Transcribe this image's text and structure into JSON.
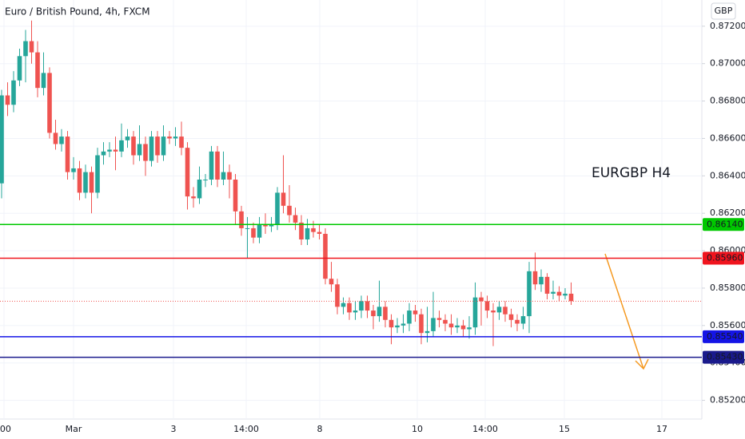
{
  "chart_data": {
    "type": "candlestick",
    "title": "Euro / British Pound, 4h, FXCM",
    "annotation": "EURGBP H4",
    "y_axis_label": "GBP",
    "up_color": "#26a69a",
    "down_color": "#ef5350",
    "grid": true,
    "ylim": [
      0.851,
      0.8734
    ],
    "yticks": [
      {
        "value": 0.852,
        "label": "0.85200"
      },
      {
        "value": 0.854,
        "label": "0.85400"
      },
      {
        "value": 0.856,
        "label": "0.85600"
      },
      {
        "value": 0.858,
        "label": "0.85800"
      },
      {
        "value": 0.86,
        "label": "0.86000"
      },
      {
        "value": 0.862,
        "label": "0.86200"
      },
      {
        "value": 0.864,
        "label": "0.86400"
      },
      {
        "value": 0.866,
        "label": "0.86600"
      },
      {
        "value": 0.868,
        "label": "0.86800"
      },
      {
        "value": 0.87,
        "label": "0.87000"
      },
      {
        "value": 0.872,
        "label": "0.87200"
      }
    ],
    "x_labels": [
      ":00",
      "Mar",
      "3",
      "14:00",
      "8",
      "10",
      "14:00",
      "15",
      "17"
    ],
    "levels": [
      {
        "value": 0.8614,
        "label": "0.86140",
        "color": "#00c800"
      },
      {
        "value": 0.8596,
        "label": "0.85960",
        "color": "#f0141e"
      },
      {
        "value": 0.8554,
        "label": "0.85540",
        "color": "#1414e6"
      },
      {
        "value": 0.8543,
        "label": "0.85430",
        "color": "#1a1a8c"
      }
    ],
    "last_price": 0.8573,
    "ohlc": [
      [
        0.8636,
        0.8686,
        0.8628,
        0.8683
      ],
      [
        0.8683,
        0.869,
        0.8672,
        0.8678
      ],
      [
        0.8678,
        0.8696,
        0.8674,
        0.8691
      ],
      [
        0.8691,
        0.8708,
        0.8688,
        0.8704
      ],
      [
        0.8704,
        0.8718,
        0.869,
        0.8712
      ],
      [
        0.8712,
        0.8723,
        0.87,
        0.8706
      ],
      [
        0.8706,
        0.8712,
        0.8682,
        0.8687
      ],
      [
        0.8687,
        0.8706,
        0.8683,
        0.8695
      ],
      [
        0.8695,
        0.8698,
        0.866,
        0.8663
      ],
      [
        0.8663,
        0.867,
        0.8654,
        0.8657
      ],
      [
        0.8657,
        0.8665,
        0.8653,
        0.8661
      ],
      [
        0.8661,
        0.8664,
        0.8638,
        0.8642
      ],
      [
        0.8642,
        0.865,
        0.8638,
        0.8644
      ],
      [
        0.8644,
        0.8648,
        0.8627,
        0.8631
      ],
      [
        0.8631,
        0.8646,
        0.8628,
        0.8642
      ],
      [
        0.8642,
        0.8645,
        0.862,
        0.8631
      ],
      [
        0.8631,
        0.8655,
        0.8628,
        0.8651
      ],
      [
        0.8651,
        0.8658,
        0.8646,
        0.8653
      ],
      [
        0.8653,
        0.8658,
        0.865,
        0.8654
      ],
      [
        0.8654,
        0.8661,
        0.8643,
        0.8653
      ],
      [
        0.8653,
        0.8668,
        0.865,
        0.8659
      ],
      [
        0.8659,
        0.8665,
        0.8655,
        0.8661
      ],
      [
        0.8661,
        0.8664,
        0.8646,
        0.8651
      ],
      [
        0.8651,
        0.8667,
        0.8648,
        0.8657
      ],
      [
        0.8657,
        0.8661,
        0.864,
        0.8648
      ],
      [
        0.8648,
        0.8664,
        0.8645,
        0.8661
      ],
      [
        0.8661,
        0.8664,
        0.8647,
        0.8651
      ],
      [
        0.8651,
        0.8667,
        0.8648,
        0.8661
      ],
      [
        0.8661,
        0.8664,
        0.8657,
        0.866
      ],
      [
        0.866,
        0.8666,
        0.8656,
        0.8661
      ],
      [
        0.8661,
        0.8669,
        0.8651,
        0.8655
      ],
      [
        0.8655,
        0.8658,
        0.8622,
        0.8629
      ],
      [
        0.8629,
        0.8634,
        0.8623,
        0.8628
      ],
      [
        0.8628,
        0.8645,
        0.8625,
        0.8638
      ],
      [
        0.8638,
        0.8641,
        0.8634,
        0.8638
      ],
      [
        0.8638,
        0.8656,
        0.8635,
        0.8653
      ],
      [
        0.8653,
        0.8656,
        0.8634,
        0.8638
      ],
      [
        0.8638,
        0.8653,
        0.8635,
        0.8642
      ],
      [
        0.8642,
        0.8646,
        0.8628,
        0.8638
      ],
      [
        0.8638,
        0.8641,
        0.8614,
        0.8621
      ],
      [
        0.8621,
        0.8624,
        0.8608,
        0.8612
      ],
      [
        0.8612,
        0.8618,
        0.8596,
        0.8612
      ],
      [
        0.8612,
        0.8615,
        0.8604,
        0.8607
      ],
      [
        0.8607,
        0.8618,
        0.8604,
        0.8614
      ],
      [
        0.8614,
        0.862,
        0.8609,
        0.8613
      ],
      [
        0.8613,
        0.8618,
        0.861,
        0.8614
      ],
      [
        0.8614,
        0.8634,
        0.8611,
        0.8631
      ],
      [
        0.8631,
        0.8651,
        0.862,
        0.8624
      ],
      [
        0.8624,
        0.8635,
        0.8615,
        0.8619
      ],
      [
        0.8619,
        0.8623,
        0.8611,
        0.8615
      ],
      [
        0.8615,
        0.8619,
        0.8603,
        0.8606
      ],
      [
        0.8606,
        0.8617,
        0.8603,
        0.8612
      ],
      [
        0.8612,
        0.8616,
        0.8607,
        0.861
      ],
      [
        0.861,
        0.8614,
        0.8606,
        0.8609
      ],
      [
        0.8609,
        0.8612,
        0.8582,
        0.8585
      ],
      [
        0.8585,
        0.8594,
        0.8578,
        0.8582
      ],
      [
        0.8582,
        0.8585,
        0.8566,
        0.857
      ],
      [
        0.857,
        0.8575,
        0.8566,
        0.8572
      ],
      [
        0.8572,
        0.8575,
        0.8563,
        0.8567
      ],
      [
        0.8567,
        0.8573,
        0.8563,
        0.8568
      ],
      [
        0.8568,
        0.8576,
        0.8564,
        0.8573
      ],
      [
        0.8573,
        0.8576,
        0.8564,
        0.8568
      ],
      [
        0.8568,
        0.8571,
        0.8558,
        0.8565
      ],
      [
        0.8565,
        0.8584,
        0.8562,
        0.857
      ],
      [
        0.857,
        0.8573,
        0.8559,
        0.8563
      ],
      [
        0.8563,
        0.8566,
        0.855,
        0.8559
      ],
      [
        0.8559,
        0.8564,
        0.8556,
        0.856
      ],
      [
        0.856,
        0.8566,
        0.8556,
        0.8561
      ],
      [
        0.8561,
        0.8572,
        0.8557,
        0.8568
      ],
      [
        0.8568,
        0.8571,
        0.8562,
        0.8566
      ],
      [
        0.8566,
        0.8569,
        0.855,
        0.8556
      ],
      [
        0.8556,
        0.857,
        0.8551,
        0.8557
      ],
      [
        0.8557,
        0.8578,
        0.8554,
        0.8564
      ],
      [
        0.8564,
        0.8568,
        0.8559,
        0.8563
      ],
      [
        0.8563,
        0.8566,
        0.8557,
        0.8561
      ],
      [
        0.8561,
        0.8566,
        0.8555,
        0.8559
      ],
      [
        0.8559,
        0.8564,
        0.8556,
        0.856
      ],
      [
        0.856,
        0.8563,
        0.8554,
        0.8558
      ],
      [
        0.8558,
        0.8565,
        0.8553,
        0.8559
      ],
      [
        0.8559,
        0.8583,
        0.8555,
        0.8575
      ],
      [
        0.8575,
        0.8578,
        0.856,
        0.8573
      ],
      [
        0.8573,
        0.8576,
        0.8564,
        0.8568
      ],
      [
        0.8568,
        0.8572,
        0.8549,
        0.8567
      ],
      [
        0.8567,
        0.8573,
        0.8563,
        0.857
      ],
      [
        0.857,
        0.8573,
        0.8562,
        0.8566
      ],
      [
        0.8566,
        0.8569,
        0.8559,
        0.8563
      ],
      [
        0.8563,
        0.8566,
        0.8557,
        0.8561
      ],
      [
        0.8561,
        0.857,
        0.8558,
        0.8565
      ],
      [
        0.8565,
        0.8594,
        0.8556,
        0.8589
      ],
      [
        0.8589,
        0.8599,
        0.8579,
        0.8582
      ],
      [
        0.8582,
        0.859,
        0.8578,
        0.8586
      ],
      [
        0.8586,
        0.8588,
        0.8574,
        0.8577
      ],
      [
        0.8577,
        0.8584,
        0.8574,
        0.8578
      ],
      [
        0.8578,
        0.8581,
        0.8573,
        0.8576
      ],
      [
        0.8576,
        0.858,
        0.8574,
        0.8577
      ],
      [
        0.8577,
        0.8583,
        0.8571,
        0.8573
      ]
    ]
  }
}
